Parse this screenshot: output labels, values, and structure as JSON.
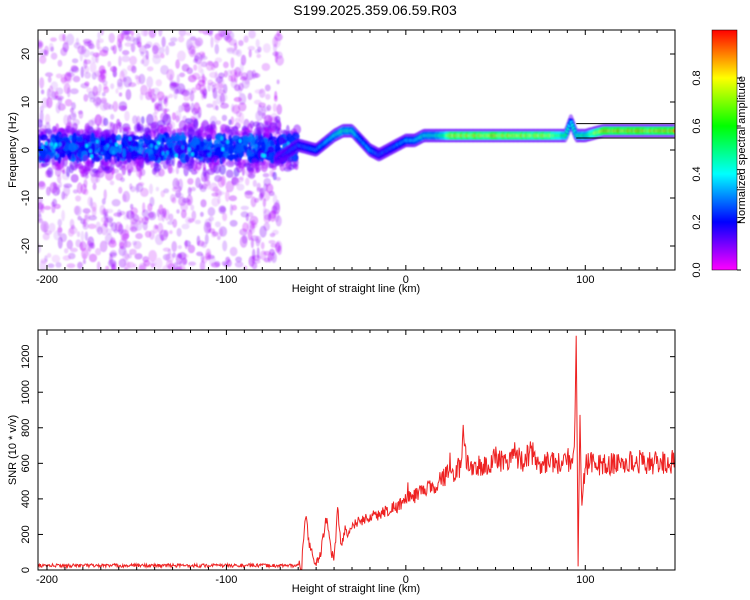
{
  "figure": {
    "title": "S199.2025.359.06.59.R03"
  },
  "chart_data": [
    {
      "type": "heatmap",
      "xlabel": "Height of straight line (km)",
      "ylabel": "Frequency (Hz)",
      "xlim": [
        -205,
        150
      ],
      "ylim": [
        -25,
        25
      ],
      "x_ticks": [
        -200,
        -100,
        0,
        100
      ],
      "y_ticks": [
        -20,
        -10,
        0,
        10,
        20
      ],
      "colorbar": {
        "label": "Normalized spectral amplitude",
        "range": [
          0,
          1
        ],
        "ticks": [
          0.0,
          0.2,
          0.4,
          0.6,
          0.8
        ],
        "colormap": [
          "#ff00ff",
          "#0000ff",
          "#00ffff",
          "#00ff00",
          "#ffff00",
          "#ff0000"
        ]
      },
      "noise_region": {
        "x_range": [
          -205,
          -70
        ],
        "freq_range": [
          -25,
          25
        ],
        "amplitude": 0.05
      },
      "dense_band": {
        "x_range": [
          -205,
          -60
        ],
        "freq_center": 0.5,
        "freq_halfwidth": 7,
        "amplitude": 0.15
      },
      "ridge": {
        "x": [
          -72,
          -60,
          -50,
          -40,
          -35,
          -30,
          -25,
          -20,
          -15,
          -10,
          -5,
          0,
          5,
          10,
          15,
          20,
          25,
          40,
          60,
          80,
          89,
          92,
          95,
          100,
          110,
          120,
          135,
          150
        ],
        "freq": [
          -2,
          1,
          0,
          3,
          4,
          4,
          2,
          0,
          -1,
          0,
          1,
          2,
          2,
          3,
          3,
          3,
          3,
          3,
          3,
          3,
          3,
          6,
          3,
          3,
          4,
          4,
          4,
          4
        ],
        "amplitude": [
          0.2,
          0.3,
          0.35,
          0.45,
          0.55,
          0.5,
          0.35,
          0.4,
          0.3,
          0.3,
          0.35,
          0.4,
          0.45,
          0.5,
          0.5,
          0.6,
          0.9,
          0.9,
          0.9,
          0.85,
          0.6,
          0.4,
          0.55,
          0.6,
          0.95,
          0.95,
          0.95,
          0.95
        ]
      },
      "reference_lines": {
        "x_range": [
          95,
          150
        ],
        "freq": [
          2.5,
          5.5
        ]
      }
    },
    {
      "type": "line",
      "xlabel": "Height of straight line (km)",
      "ylabel": "SNR (10 * v/v)",
      "xlim": [
        -205,
        150
      ],
      "ylim": [
        0,
        1350
      ],
      "x_ticks": [
        -200,
        -100,
        0,
        100
      ],
      "y_ticks": [
        0,
        200,
        400,
        600,
        800,
        1000,
        1200
      ],
      "series": [
        {
          "color": "#ee2222",
          "x": [
            -205,
            -150,
            -100,
            -80,
            -58,
            -56,
            -54,
            -52,
            -50,
            -48,
            -46,
            -44,
            -42,
            -40,
            -38,
            -36,
            -34,
            -32,
            -30,
            -25,
            -20,
            -15,
            -10,
            -5,
            0,
            5,
            10,
            15,
            20,
            25,
            30,
            32,
            35,
            40,
            45,
            50,
            55,
            60,
            65,
            70,
            75,
            80,
            85,
            90,
            92,
            94,
            95,
            96,
            97,
            98,
            100,
            105,
            110,
            120,
            130,
            140,
            150
          ],
          "y": [
            25,
            25,
            25,
            25,
            25,
            330,
            150,
            80,
            30,
            60,
            200,
            300,
            120,
            50,
            350,
            120,
            230,
            200,
            250,
            280,
            300,
            310,
            340,
            360,
            390,
            420,
            440,
            470,
            520,
            540,
            580,
            740,
            560,
            590,
            580,
            630,
            610,
            650,
            620,
            660,
            600,
            620,
            600,
            640,
            580,
            700,
            1350,
            20,
            900,
            350,
            600,
            600,
            590,
            600,
            610,
            600,
            610
          ]
        }
      ]
    }
  ]
}
